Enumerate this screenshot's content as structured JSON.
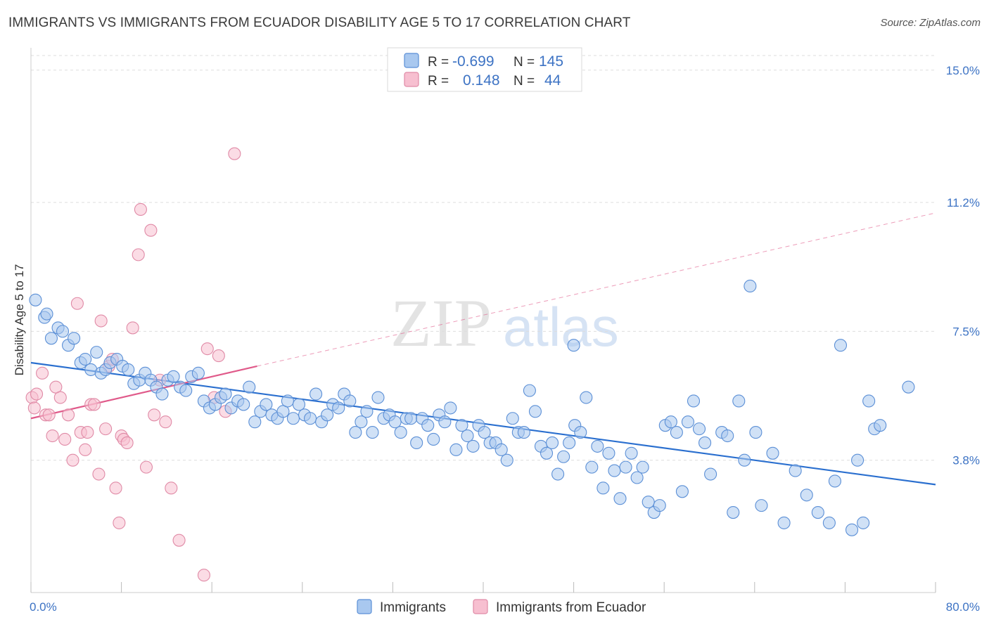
{
  "title": "IMMIGRANTS VS IMMIGRANTS FROM ECUADOR DISABILITY AGE 5 TO 17 CORRELATION CHART",
  "source": "Source: ZipAtlas.com",
  "watermark": {
    "zip": "ZIP",
    "atlas": "atlas"
  },
  "colors": {
    "blue_fill": "#a9c8ef",
    "blue_stroke": "#5b8fd6",
    "blue_line": "#2a6fcf",
    "pink_fill": "#f7bfd0",
    "pink_stroke": "#e08aa6",
    "pink_line": "#e05a8a",
    "grid": "#dddddd",
    "tick_label": "#3d73c4"
  },
  "legend_top": {
    "rows": [
      {
        "r_label": "R =",
        "r_value": "-0.699",
        "n_label": "N =",
        "n_value": "145"
      },
      {
        "r_label": "R =",
        "r_value": "0.148",
        "n_label": "N =",
        "n_value": "44"
      }
    ]
  },
  "chart_data": {
    "type": "scatter",
    "title": "IMMIGRANTS VS IMMIGRANTS FROM ECUADOR DISABILITY AGE 5 TO 17 CORRELATION CHART",
    "xlabel": "",
    "ylabel": "Disability Age 5 to 17",
    "xlim": [
      0,
      80
    ],
    "ylim": [
      0,
      15.5
    ],
    "x_tick_labels": [
      "0.0%",
      "80.0%"
    ],
    "y_ticks": [
      3.8,
      7.5,
      11.2,
      15.0
    ],
    "y_tick_labels": [
      "3.8%",
      "7.5%",
      "11.2%",
      "15.0%"
    ],
    "grid": "horizontal dashed",
    "legend_placement": "top-center and bottom",
    "series": [
      {
        "name": "Immigrants",
        "r": -0.699,
        "n": 145,
        "trend": {
          "x": [
            0,
            80
          ],
          "y": [
            6.6,
            3.1
          ]
        },
        "points": [
          [
            0.4,
            8.4
          ],
          [
            1.2,
            7.9
          ],
          [
            1.4,
            8.0
          ],
          [
            1.8,
            7.3
          ],
          [
            2.4,
            7.6
          ],
          [
            2.8,
            7.5
          ],
          [
            3.3,
            7.1
          ],
          [
            3.8,
            7.3
          ],
          [
            4.4,
            6.6
          ],
          [
            4.8,
            6.7
          ],
          [
            5.3,
            6.4
          ],
          [
            5.8,
            6.9
          ],
          [
            6.2,
            6.3
          ],
          [
            6.6,
            6.4
          ],
          [
            7.0,
            6.6
          ],
          [
            7.6,
            6.7
          ],
          [
            8.1,
            6.5
          ],
          [
            8.6,
            6.4
          ],
          [
            9.1,
            6.0
          ],
          [
            9.6,
            6.1
          ],
          [
            10.1,
            6.3
          ],
          [
            10.6,
            6.1
          ],
          [
            11.1,
            5.9
          ],
          [
            11.6,
            5.7
          ],
          [
            12.1,
            6.1
          ],
          [
            12.6,
            6.2
          ],
          [
            13.2,
            5.9
          ],
          [
            13.7,
            5.8
          ],
          [
            14.2,
            6.2
          ],
          [
            14.8,
            6.3
          ],
          [
            15.3,
            5.5
          ],
          [
            15.8,
            5.3
          ],
          [
            16.3,
            5.4
          ],
          [
            16.8,
            5.6
          ],
          [
            17.2,
            5.7
          ],
          [
            17.7,
            5.3
          ],
          [
            18.3,
            5.5
          ],
          [
            18.8,
            5.4
          ],
          [
            19.3,
            5.9
          ],
          [
            19.8,
            4.9
          ],
          [
            20.3,
            5.2
          ],
          [
            20.8,
            5.4
          ],
          [
            21.3,
            5.1
          ],
          [
            21.8,
            5.0
          ],
          [
            22.3,
            5.2
          ],
          [
            22.7,
            5.5
          ],
          [
            23.2,
            5.0
          ],
          [
            23.7,
            5.4
          ],
          [
            24.2,
            5.1
          ],
          [
            24.7,
            5.0
          ],
          [
            25.2,
            5.7
          ],
          [
            25.7,
            4.9
          ],
          [
            26.2,
            5.1
          ],
          [
            26.7,
            5.4
          ],
          [
            27.2,
            5.3
          ],
          [
            27.7,
            5.7
          ],
          [
            28.2,
            5.5
          ],
          [
            28.7,
            4.6
          ],
          [
            29.2,
            4.9
          ],
          [
            29.7,
            5.2
          ],
          [
            30.2,
            4.6
          ],
          [
            30.7,
            5.6
          ],
          [
            31.2,
            5.0
          ],
          [
            31.7,
            5.1
          ],
          [
            32.2,
            4.9
          ],
          [
            32.7,
            4.6
          ],
          [
            33.2,
            5.0
          ],
          [
            33.6,
            5.0
          ],
          [
            34.1,
            4.3
          ],
          [
            34.6,
            5.0
          ],
          [
            35.1,
            4.8
          ],
          [
            35.6,
            4.4
          ],
          [
            36.1,
            5.1
          ],
          [
            36.6,
            4.9
          ],
          [
            37.1,
            5.3
          ],
          [
            37.6,
            4.1
          ],
          [
            38.1,
            4.8
          ],
          [
            38.6,
            4.5
          ],
          [
            39.1,
            4.2
          ],
          [
            39.6,
            4.8
          ],
          [
            40.1,
            4.6
          ],
          [
            40.6,
            4.3
          ],
          [
            41.1,
            4.3
          ],
          [
            41.6,
            4.1
          ],
          [
            42.1,
            3.8
          ],
          [
            42.6,
            5.0
          ],
          [
            43.1,
            4.6
          ],
          [
            43.6,
            4.6
          ],
          [
            44.1,
            5.8
          ],
          [
            44.6,
            5.2
          ],
          [
            45.1,
            4.2
          ],
          [
            45.6,
            4.0
          ],
          [
            46.1,
            4.3
          ],
          [
            46.6,
            3.4
          ],
          [
            47.1,
            3.9
          ],
          [
            47.6,
            4.3
          ],
          [
            48.1,
            4.8
          ],
          [
            48.6,
            4.6
          ],
          [
            49.1,
            5.6
          ],
          [
            49.6,
            3.6
          ],
          [
            50.1,
            4.2
          ],
          [
            50.6,
            3.0
          ],
          [
            51.1,
            4.0
          ],
          [
            51.6,
            3.5
          ],
          [
            52.1,
            2.7
          ],
          [
            52.6,
            3.6
          ],
          [
            53.1,
            4.0
          ],
          [
            53.6,
            3.3
          ],
          [
            54.1,
            3.6
          ],
          [
            54.6,
            2.6
          ],
          [
            55.1,
            2.3
          ],
          [
            55.6,
            2.5
          ],
          [
            56.1,
            4.8
          ],
          [
            56.6,
            4.9
          ],
          [
            57.1,
            4.6
          ],
          [
            57.6,
            2.9
          ],
          [
            58.1,
            4.9
          ],
          [
            58.6,
            5.5
          ],
          [
            59.1,
            4.7
          ],
          [
            59.6,
            4.3
          ],
          [
            60.1,
            3.4
          ],
          [
            61.1,
            4.6
          ],
          [
            61.6,
            4.5
          ],
          [
            62.1,
            2.3
          ],
          [
            62.6,
            5.5
          ],
          [
            63.1,
            3.8
          ],
          [
            63.6,
            8.8
          ],
          [
            64.1,
            4.6
          ],
          [
            64.6,
            2.5
          ],
          [
            65.6,
            4.0
          ],
          [
            66.6,
            2.0
          ],
          [
            67.6,
            3.5
          ],
          [
            68.6,
            2.8
          ],
          [
            69.6,
            2.3
          ],
          [
            70.6,
            2.0
          ],
          [
            71.1,
            3.2
          ],
          [
            71.6,
            7.1
          ],
          [
            72.6,
            1.8
          ],
          [
            73.1,
            3.8
          ],
          [
            73.6,
            2.0
          ],
          [
            74.1,
            5.5
          ],
          [
            74.6,
            4.7
          ],
          [
            75.1,
            4.8
          ],
          [
            77.6,
            5.9
          ],
          [
            48.0,
            7.1
          ]
        ]
      },
      {
        "name": "Immigrants from Ecuador",
        "r": 0.148,
        "n": 44,
        "trend": {
          "x": [
            0,
            20
          ],
          "y": [
            5.0,
            6.5
          ]
        },
        "trend_extension": {
          "x": [
            20,
            80
          ],
          "y": [
            6.5,
            10.9
          ]
        },
        "points": [
          [
            0.1,
            5.6
          ],
          [
            0.3,
            5.3
          ],
          [
            0.5,
            5.7
          ],
          [
            1.0,
            6.3
          ],
          [
            1.3,
            5.1
          ],
          [
            1.6,
            5.1
          ],
          [
            1.9,
            4.5
          ],
          [
            2.2,
            5.9
          ],
          [
            2.6,
            5.6
          ],
          [
            3.0,
            4.4
          ],
          [
            3.3,
            5.1
          ],
          [
            3.7,
            3.8
          ],
          [
            4.1,
            8.3
          ],
          [
            4.4,
            4.6
          ],
          [
            4.8,
            4.1
          ],
          [
            5.0,
            4.6
          ],
          [
            5.3,
            5.4
          ],
          [
            5.6,
            5.4
          ],
          [
            6.0,
            3.4
          ],
          [
            6.2,
            7.8
          ],
          [
            6.6,
            4.7
          ],
          [
            6.9,
            6.5
          ],
          [
            7.2,
            6.7
          ],
          [
            7.5,
            3.0
          ],
          [
            7.8,
            2.0
          ],
          [
            8.0,
            4.5
          ],
          [
            8.2,
            4.4
          ],
          [
            8.5,
            4.3
          ],
          [
            9.0,
            7.6
          ],
          [
            9.5,
            9.7
          ],
          [
            9.7,
            11.0
          ],
          [
            10.2,
            3.6
          ],
          [
            10.6,
            10.4
          ],
          [
            10.9,
            5.1
          ],
          [
            11.4,
            6.1
          ],
          [
            11.9,
            4.9
          ],
          [
            12.4,
            3.0
          ],
          [
            13.1,
            1.5
          ],
          [
            15.3,
            0.5
          ],
          [
            15.6,
            7.0
          ],
          [
            16.2,
            5.6
          ],
          [
            16.6,
            6.8
          ],
          [
            17.2,
            5.2
          ],
          [
            18.0,
            12.6
          ]
        ]
      }
    ]
  },
  "legend_bottom": {
    "items": [
      {
        "label": "Immigrants"
      },
      {
        "label": "Immigrants from Ecuador"
      }
    ]
  }
}
